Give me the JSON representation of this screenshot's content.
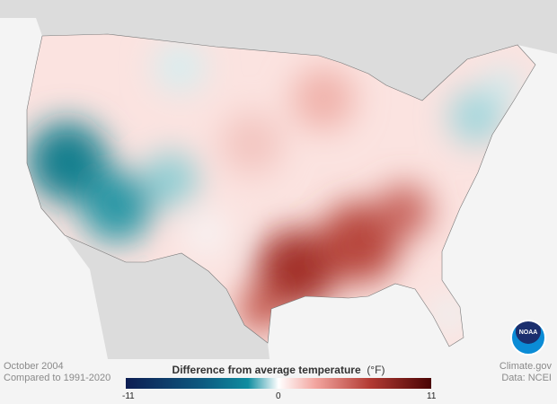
{
  "info": {
    "period": "October 2004",
    "baseline": "Compared to 1991-2020",
    "source": "Climate.gov",
    "data": "Data: NCEI"
  },
  "legend": {
    "title": "Difference from average temperature",
    "unit": "(°F)",
    "min": "-11",
    "mid": "0",
    "max": "11",
    "colors": {
      "cold": "#0d1d52",
      "cool": "#0f8da0",
      "neutral": "#ffffff",
      "warm": "#b23a33",
      "hot": "#4a0404"
    }
  },
  "logo": {
    "text": "NOAA"
  }
}
